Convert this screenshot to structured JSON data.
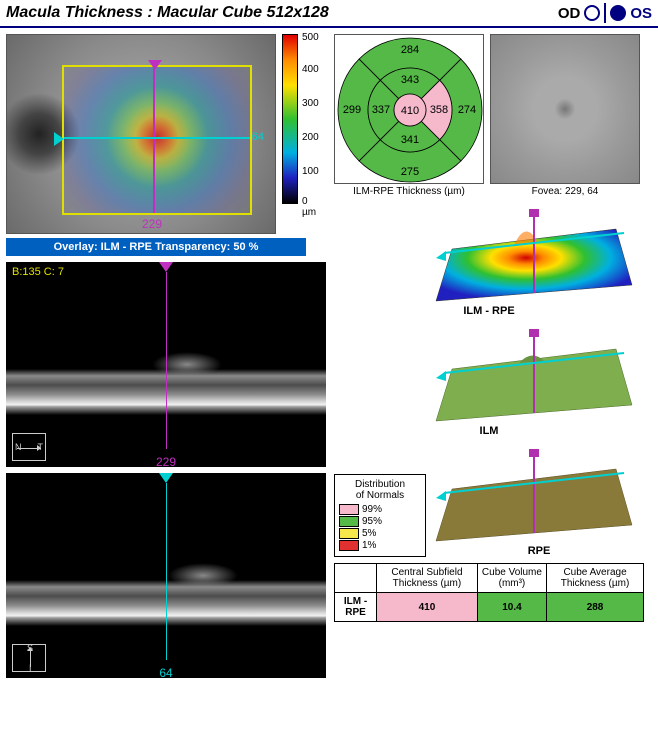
{
  "header": {
    "title": "Macula Thickness : Macular Cube 512x128",
    "od_label": "OD",
    "os_label": "OS",
    "selected_eye": "OS"
  },
  "fundus": {
    "overlay_bar": "Overlay: ILM - RPE  Transparency: 50 %",
    "marker_x_label": "229",
    "marker_y_label": "64",
    "colorbar": {
      "max": "500",
      "steps": [
        "500",
        "400",
        "300",
        "200",
        "100",
        "0 µm"
      ]
    }
  },
  "bscan_h": {
    "bc_text": "B:135 C:  7",
    "label": "229",
    "label_color": "#c030c0",
    "marker_color": "#c030c0",
    "axis_l": "N",
    "axis_r": "T"
  },
  "bscan_v": {
    "label": "64",
    "label_color": "#00d0d0",
    "marker_color": "#00d0d0",
    "axis_t": "S",
    "axis_b": "I"
  },
  "etdrs": {
    "label": "ILM-RPE Thickness (µm)",
    "center": {
      "val": "410",
      "fill": "#f6b9cc"
    },
    "inner": [
      {
        "val": "343",
        "fill": "#55b948"
      },
      {
        "val": "358",
        "fill": "#f6b9cc"
      },
      {
        "val": "341",
        "fill": "#55b948"
      },
      {
        "val": "337",
        "fill": "#55b948"
      }
    ],
    "outer": [
      {
        "val": "284",
        "fill": "#55b948"
      },
      {
        "val": "274",
        "fill": "#55b948"
      },
      {
        "val": "275",
        "fill": "#55b948"
      },
      {
        "val": "299",
        "fill": "#55b948"
      }
    ]
  },
  "fovea": {
    "label": "Fovea: 229, 64"
  },
  "surfaces": {
    "ilm_rpe": "ILM - RPE",
    "ilm": "ILM",
    "rpe": "RPE"
  },
  "distribution": {
    "title": "Distribution\nof Normals",
    "rows": [
      {
        "color": "#f6b9cc",
        "label": "99%"
      },
      {
        "color": "#55b948",
        "label": "95%"
      },
      {
        "color": "#f6e84a",
        "label": "5%"
      },
      {
        "color": "#e03030",
        "label": "1%"
      }
    ]
  },
  "results": {
    "headers": [
      "",
      "Central Subfield Thickness (µm)",
      "Cube Volume (mm³)",
      "Cube Average Thickness (µm)"
    ],
    "row_label": "ILM - RPE",
    "cells": [
      {
        "val": "410",
        "fill": "#f6b9cc"
      },
      {
        "val": "10.4",
        "fill": "#55b948"
      },
      {
        "val": "288",
        "fill": "#55b948"
      }
    ]
  },
  "surface_colors": {
    "ilm_rpe_poly": "url(#gILMRPE)",
    "ilm_fill": "#7fae4e",
    "rpe_fill": "#8a7a3a",
    "marker_purple": "#b030b0",
    "marker_cyan": "#00d0d0"
  }
}
